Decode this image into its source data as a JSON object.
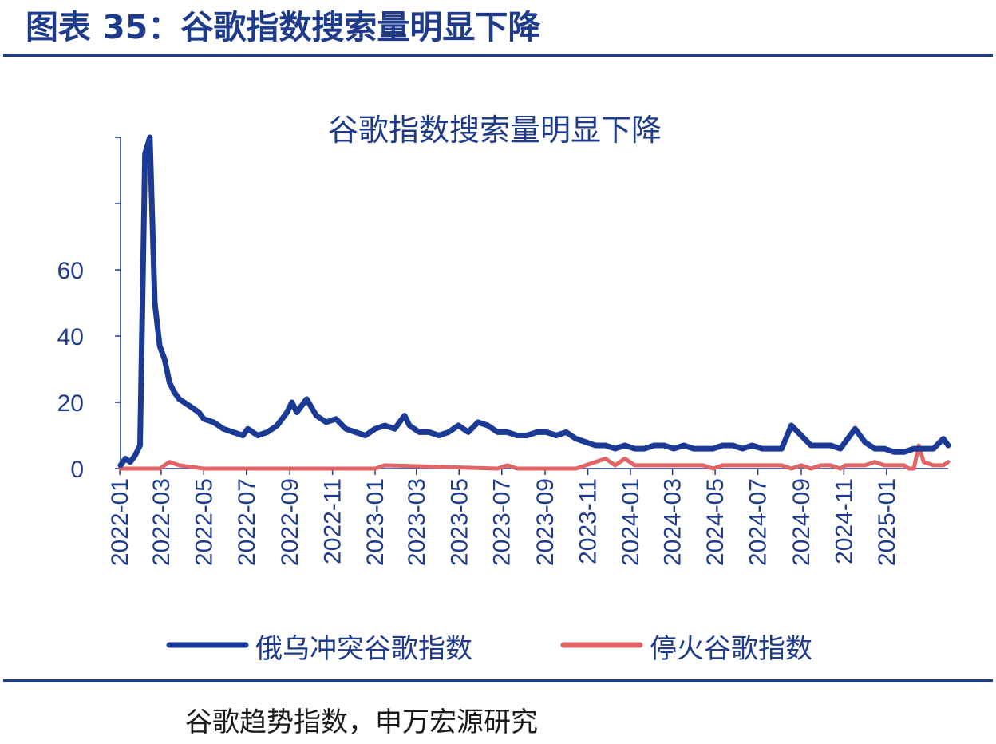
{
  "header": {
    "title": "图表 35：谷歌指数搜索量明显下降"
  },
  "footer": {
    "source": "谷歌趋势指数，申万宏源研究"
  },
  "colors": {
    "accent": "#1e3a8a",
    "series_1": "#1a3a95",
    "series_2": "#e06666"
  },
  "chart_data": {
    "type": "line",
    "title": "谷歌指数搜索量明显下降",
    "xlabel": "",
    "ylabel": "",
    "ylim": [
      0,
      100
    ],
    "y_ticks": [
      0,
      20,
      40,
      60
    ],
    "x_start": "2022-01-02",
    "x_end": "2025-03-30",
    "x_tick_labels": [
      "2022-01",
      "2022-03",
      "2022-05",
      "2022-07",
      "2022-09",
      "2022-11",
      "2023-01",
      "2023-03",
      "2023-05",
      "2023-07",
      "2023-09",
      "2023-11",
      "2024-01",
      "2024-03",
      "2024-05",
      "2024-07",
      "2024-09",
      "2024-11",
      "2025-01"
    ],
    "legend_position": "bottom",
    "grid": false,
    "series": [
      {
        "name": "俄乌冲突谷歌指数",
        "x": [
          "2022-01-02",
          "2022-01-09",
          "2022-01-16",
          "2022-01-23",
          "2022-01-30",
          "2022-02-06",
          "2022-02-13",
          "2022-02-20",
          "2022-02-27",
          "2022-03-06",
          "2022-03-13",
          "2022-03-20",
          "2022-03-27",
          "2022-04-03",
          "2022-04-10",
          "2022-04-17",
          "2022-04-24",
          "2022-05-01",
          "2022-05-15",
          "2022-05-29",
          "2022-06-12",
          "2022-06-26",
          "2022-07-03",
          "2022-07-17",
          "2022-07-31",
          "2022-08-14",
          "2022-08-28",
          "2022-09-04",
          "2022-09-11",
          "2022-09-25",
          "2022-10-09",
          "2022-10-23",
          "2022-11-06",
          "2022-11-20",
          "2022-12-04",
          "2022-12-18",
          "2023-01-01",
          "2023-01-15",
          "2023-01-29",
          "2023-02-12",
          "2023-02-19",
          "2023-03-05",
          "2023-03-19",
          "2023-04-02",
          "2023-04-16",
          "2023-04-30",
          "2023-05-14",
          "2023-05-28",
          "2023-06-11",
          "2023-06-25",
          "2023-07-09",
          "2023-07-23",
          "2023-08-06",
          "2023-08-20",
          "2023-09-03",
          "2023-09-17",
          "2023-10-01",
          "2023-10-15",
          "2023-10-29",
          "2023-11-12",
          "2023-11-26",
          "2023-12-10",
          "2023-12-24",
          "2024-01-07",
          "2024-01-21",
          "2024-02-04",
          "2024-02-18",
          "2024-03-03",
          "2024-03-17",
          "2024-03-31",
          "2024-04-14",
          "2024-04-28",
          "2024-05-12",
          "2024-05-26",
          "2024-06-09",
          "2024-06-23",
          "2024-07-07",
          "2024-07-21",
          "2024-08-04",
          "2024-08-18",
          "2024-09-01",
          "2024-09-15",
          "2024-09-29",
          "2024-10-13",
          "2024-10-27",
          "2024-11-03",
          "2024-11-17",
          "2024-12-01",
          "2024-12-15",
          "2024-12-29",
          "2025-01-12",
          "2025-01-26",
          "2025-02-09",
          "2025-02-23",
          "2025-03-09",
          "2025-03-23",
          "2025-03-30"
        ],
        "values": [
          1,
          3,
          2,
          4,
          7,
          95,
          100,
          50,
          37,
          33,
          26,
          23,
          21,
          20,
          19,
          18,
          17,
          15,
          14,
          12,
          11,
          10,
          12,
          10,
          11,
          13,
          17,
          20,
          17,
          21,
          16,
          14,
          15,
          12,
          11,
          10,
          12,
          13,
          12,
          16,
          13,
          11,
          11,
          10,
          11,
          13,
          11,
          14,
          13,
          11,
          11,
          10,
          10,
          11,
          11,
          10,
          11,
          9,
          8,
          7,
          7,
          6,
          7,
          6,
          6,
          7,
          7,
          6,
          7,
          6,
          6,
          6,
          7,
          7,
          6,
          7,
          6,
          6,
          6,
          13,
          10,
          7,
          7,
          7,
          6,
          8,
          12,
          8,
          6,
          6,
          5,
          5,
          6,
          6,
          6,
          9,
          7
        ]
      },
      {
        "name": "停火谷歌指数",
        "x": [
          "2022-01-02",
          "2022-02-27",
          "2022-03-13",
          "2022-03-27",
          "2022-05-01",
          "2022-08-28",
          "2022-09-11",
          "2022-12-04",
          "2023-01-01",
          "2023-01-15",
          "2023-06-25",
          "2023-07-09",
          "2023-07-23",
          "2023-10-01",
          "2023-10-15",
          "2023-10-29",
          "2023-11-12",
          "2023-11-26",
          "2023-12-03",
          "2023-12-10",
          "2023-12-24",
          "2024-01-07",
          "2024-01-21",
          "2024-02-04",
          "2024-02-18",
          "2024-03-03",
          "2024-03-17",
          "2024-03-31",
          "2024-04-14",
          "2024-04-28",
          "2024-05-12",
          "2024-05-26",
          "2024-06-09",
          "2024-06-23",
          "2024-07-07",
          "2024-07-21",
          "2024-08-04",
          "2024-08-18",
          "2024-09-01",
          "2024-09-15",
          "2024-09-29",
          "2024-10-13",
          "2024-10-27",
          "2024-11-03",
          "2024-11-17",
          "2024-12-01",
          "2024-12-15",
          "2024-12-29",
          "2025-01-12",
          "2025-01-26",
          "2025-02-02",
          "2025-02-09",
          "2025-02-16",
          "2025-02-23",
          "2025-03-09",
          "2025-03-23",
          "2025-03-30"
        ],
        "values": [
          0,
          0,
          2,
          1,
          0,
          0,
          0,
          0,
          0,
          1,
          0,
          1,
          0,
          0,
          0,
          1,
          2,
          3,
          2,
          1,
          3,
          1,
          1,
          1,
          1,
          1,
          1,
          1,
          1,
          0,
          1,
          1,
          1,
          1,
          1,
          1,
          1,
          0,
          1,
          0,
          1,
          1,
          0,
          1,
          1,
          1,
          2,
          1,
          1,
          1,
          0,
          0,
          7,
          2,
          1,
          1,
          2
        ]
      }
    ]
  }
}
